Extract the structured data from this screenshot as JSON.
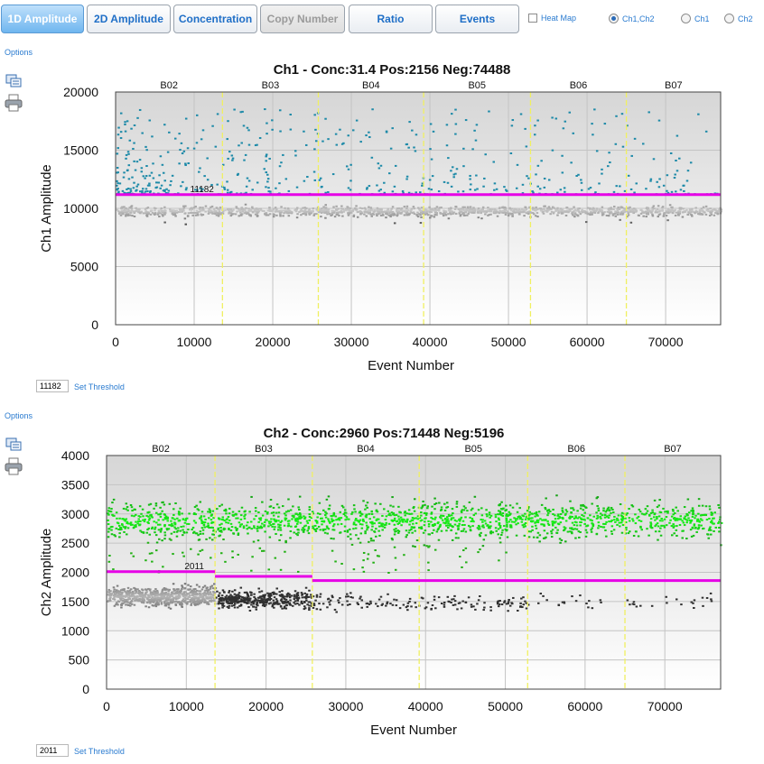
{
  "tabs": [
    {
      "label": "1D Amplitude",
      "state": "active"
    },
    {
      "label": "2D Amplitude",
      "state": "normal"
    },
    {
      "label": "Concentration",
      "state": "normal"
    },
    {
      "label": "Copy Number",
      "state": "disabled"
    },
    {
      "label": "Ratio",
      "state": "normal"
    },
    {
      "label": "Events",
      "state": "normal"
    }
  ],
  "heatmap": {
    "label": "Heat Map",
    "checked": false
  },
  "channel_options": [
    {
      "label": "Ch1,Ch2",
      "selected": true
    },
    {
      "label": "Ch1",
      "selected": false
    },
    {
      "label": "Ch2",
      "selected": false
    }
  ],
  "options_label": "Options",
  "set_threshold_label": "Set Threshold",
  "icons": [
    "copy-icon",
    "print-icon"
  ],
  "colors": {
    "accent": "#1f6fc7",
    "threshold": "#e600e6",
    "well_divider": "#f0f060",
    "ch1_positive": "#1d8aa8",
    "ch2_positive": "#22b014",
    "negative": "#3c3c3c"
  },
  "chart_data": [
    {
      "type": "scatter",
      "title": "Ch1 - Conc:31.4 Pos:2156 Neg:74488",
      "xlabel": "Event Number",
      "ylabel": "Ch1 Amplitude",
      "xlim": [
        0,
        77000
      ],
      "ylim": [
        0,
        20000
      ],
      "xticks": [
        0,
        10000,
        20000,
        30000,
        40000,
        50000,
        60000,
        70000
      ],
      "yticks": [
        0,
        5000,
        10000,
        15000,
        20000
      ],
      "grid": true,
      "wells": [
        {
          "name": "B02",
          "start": 0,
          "end": 13600
        },
        {
          "name": "B03",
          "start": 13600,
          "end": 25800
        },
        {
          "name": "B04",
          "start": 25800,
          "end": 39200
        },
        {
          "name": "B05",
          "start": 39200,
          "end": 52800
        },
        {
          "name": "B06",
          "start": 52800,
          "end": 65000
        },
        {
          "name": "B07",
          "start": 65000,
          "end": 77000
        }
      ],
      "threshold": {
        "value": 11182,
        "label": "11182",
        "segments": [
          [
            0,
            77000,
            11182
          ]
        ]
      },
      "threshold_input": "11182",
      "series": [
        {
          "name": "Positive",
          "color": "#1d8aa8",
          "y_band": [
            11200,
            18500
          ]
        },
        {
          "name": "Negative",
          "color": "#3c3c3c",
          "y_band": [
            8800,
            10800
          ]
        }
      ]
    },
    {
      "type": "scatter",
      "title": "Ch2 - Conc:2960 Pos:71448 Neg:5196",
      "xlabel": "Event Number",
      "ylabel": "Ch2 Amplitude",
      "xlim": [
        0,
        77000
      ],
      "ylim": [
        0,
        4000
      ],
      "xticks": [
        0,
        10000,
        20000,
        30000,
        40000,
        50000,
        60000,
        70000
      ],
      "yticks": [
        0,
        500,
        1000,
        1500,
        2000,
        2500,
        3000,
        3500,
        4000
      ],
      "grid": true,
      "wells": [
        {
          "name": "B02",
          "start": 0,
          "end": 13600
        },
        {
          "name": "B03",
          "start": 13600,
          "end": 25800
        },
        {
          "name": "B04",
          "start": 25800,
          "end": 39200
        },
        {
          "name": "B05",
          "start": 39200,
          "end": 52800
        },
        {
          "name": "B06",
          "start": 52800,
          "end": 65000
        },
        {
          "name": "B07",
          "start": 65000,
          "end": 77000
        }
      ],
      "threshold": {
        "value": 2011,
        "label": "2011",
        "segments": [
          [
            0,
            13600,
            2011
          ],
          [
            13600,
            25800,
            1930
          ],
          [
            25800,
            77000,
            1860
          ]
        ]
      },
      "threshold_input": "2011",
      "series": [
        {
          "name": "Positive",
          "color": "#22b014",
          "y_band": [
            2400,
            3400
          ]
        },
        {
          "name": "Negative",
          "color": "#3c3c3c",
          "y_band": [
            1250,
            1950
          ]
        }
      ]
    }
  ]
}
